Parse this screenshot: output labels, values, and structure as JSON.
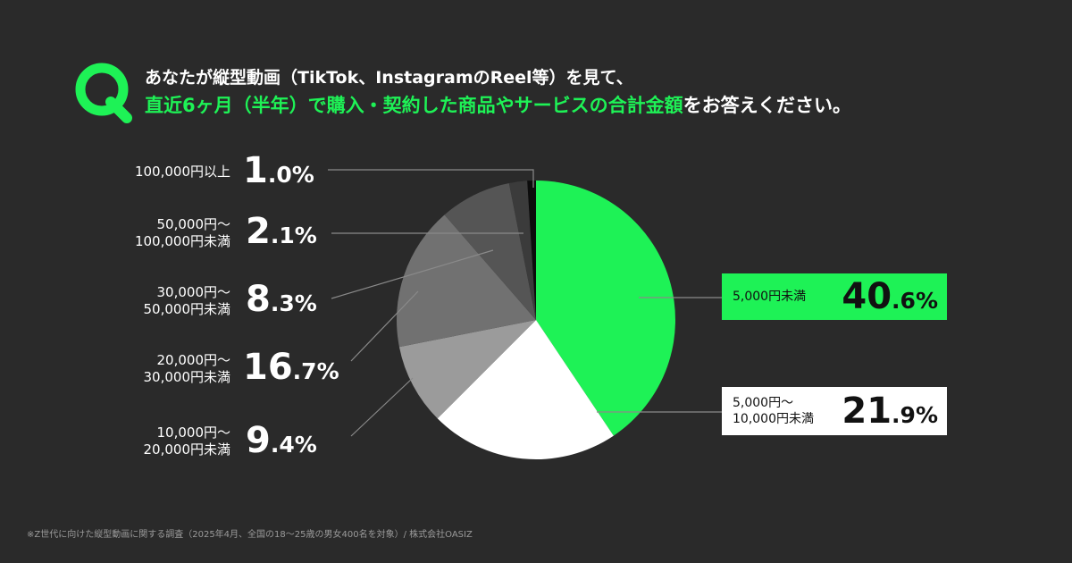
{
  "question": {
    "line1": "あなたが縦型動画（TikTok、InstagramのReel等）を見て、",
    "line2_highlight": "直近6ヶ月（半年）で購入・契約した商品やサービスの合計金額",
    "line2_rest": "をお答えください。"
  },
  "colors": {
    "accent": "#1ef256",
    "background": "#2a2a2a"
  },
  "chart_data": {
    "type": "pie",
    "title": "直近6ヶ月（半年）で購入・契約した商品やサービスの合計金額",
    "slices": [
      {
        "label": "5,000円未満",
        "int": "40",
        "dec": ".6%",
        "value": 40.6,
        "color": "#1ef256"
      },
      {
        "label": "5,000円〜\n10,000円未満",
        "int": "21",
        "dec": ".9%",
        "value": 21.9,
        "color": "#ffffff"
      },
      {
        "label": "10,000円〜\n20,000円未満",
        "int": "9",
        "dec": ".4%",
        "value": 9.4,
        "color": "#9b9b9b"
      },
      {
        "label": "20,000円〜\n30,000円未満",
        "int": "16",
        "dec": ".7%",
        "value": 16.7,
        "color": "#717171"
      },
      {
        "label": "30,000円〜\n50,000円未満",
        "int": "8",
        "dec": ".3%",
        "value": 8.3,
        "color": "#555555"
      },
      {
        "label": "50,000円〜\n100,000円未満",
        "int": "2",
        "dec": ".1%",
        "value": 2.1,
        "color": "#3b3b3b"
      },
      {
        "label": "100,000円以上",
        "int": "1",
        "dec": ".0%",
        "value": 1.0,
        "color": "#0c0c0c"
      }
    ]
  },
  "footnote": "※Z世代に向けた縦型動画に関する調査（2025年4月、全国の18〜25歳の男女400名を対象）/ 株式会社OASIZ"
}
